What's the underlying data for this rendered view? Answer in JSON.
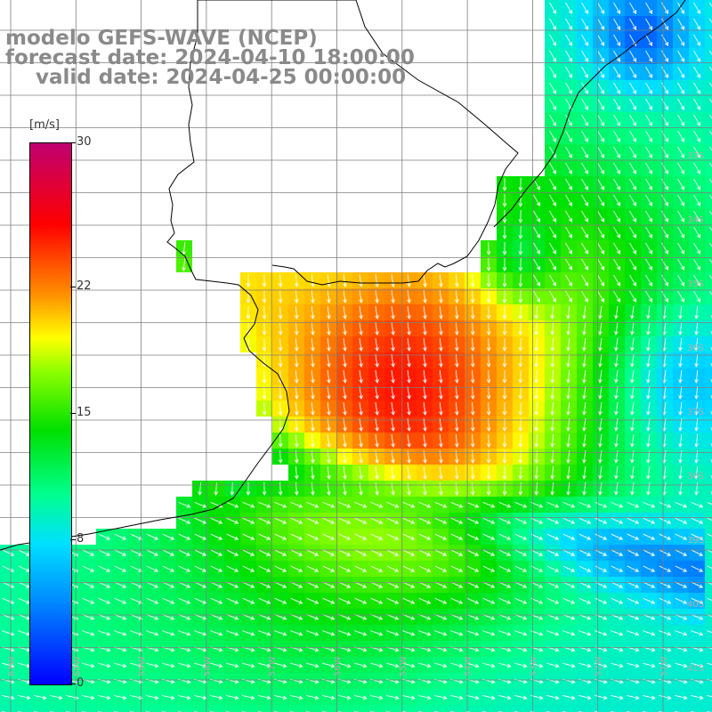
{
  "header": {
    "line1": "modelo GEFS-WAVE (NCEP)",
    "line2": "forecast date: 2024-04-10 18:00:00",
    "line3": "valid date: 2024-04-25 00:00:00"
  },
  "colorbar": {
    "unit": "[m/s]",
    "ticks": [
      {
        "label": "30",
        "value": 30
      },
      {
        "label": "22",
        "value": 22
      },
      {
        "label": "15",
        "value": 15
      },
      {
        "label": "8",
        "value": 8
      },
      {
        "label": "0",
        "value": 0
      }
    ],
    "min": 0,
    "max": 30
  },
  "map": {
    "lat_labels": [
      "33S",
      "34S",
      "35S",
      "36S",
      "37S",
      "38S",
      "39S",
      "40S",
      "41S"
    ],
    "lon_labels": [
      "61W",
      "60W",
      "59W",
      "58W",
      "57W",
      "56W",
      "55W",
      "54W",
      "53W",
      "52W",
      "51W"
    ],
    "colors": {
      "grid": "#7f7f7f",
      "coast": "#000000",
      "arrow": "#ffffff"
    }
  }
}
